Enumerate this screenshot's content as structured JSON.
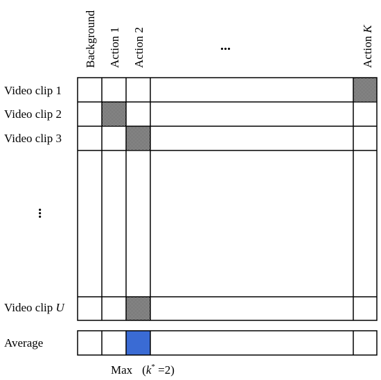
{
  "columns": {
    "background": "Background",
    "action1": "Action 1",
    "action2": "Action 2",
    "ellipsis": "...",
    "actionK_prefix": "Action ",
    "actionK_var": "K"
  },
  "rows": {
    "clip1": "Video clip 1",
    "clip2": "Video clip 2",
    "clip3": "Video clip 3",
    "ellipsis": "...",
    "clipU_prefix": "Video clip ",
    "clipU_var": "U",
    "average": "Average"
  },
  "max_label": {
    "prefix": "Max",
    "open": "(",
    "var": "k",
    "sup": "*",
    "rest": " =2)"
  },
  "colors": {
    "highlight": "#3a6bd4",
    "hatch": "#000000",
    "grid": "#000000"
  },
  "highlighted_cells": [
    {
      "row": "clip1",
      "column": "actionK"
    },
    {
      "row": "clip2",
      "column": "action1"
    },
    {
      "row": "clip3",
      "column": "action2"
    },
    {
      "row": "clipU",
      "column": "action2"
    }
  ],
  "max_cell": {
    "row": "average",
    "column": "action2"
  }
}
